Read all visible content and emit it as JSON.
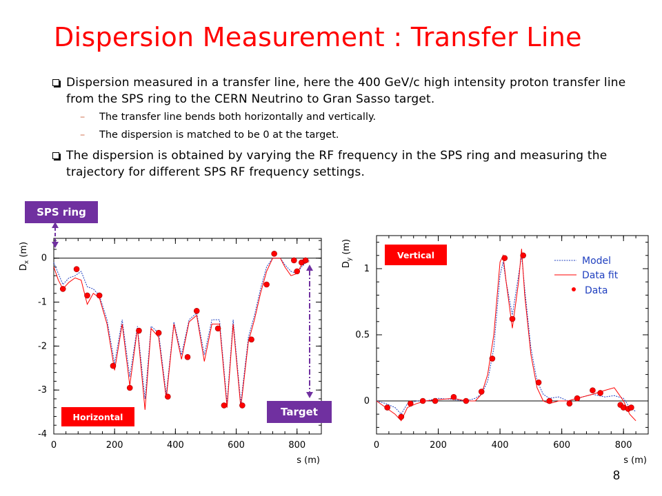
{
  "title": "Dispersion Measurement : Transfer Line",
  "bullets": [
    "Dispersion measured in a transfer line, here the 400 GeV/c high intensity proton transfer line from the SPS ring to the CERN Neutrino to Gran Sasso target.",
    "The dispersion is obtained by varying the RF frequency in the SPS ring and measuring the trajectory for different SPS RF frequency settings."
  ],
  "sub_bullets": [
    "The transfer line bends both horizontally and vertically.",
    "The dispersion is matched to be 0 at the target."
  ],
  "annotations": {
    "sps_ring": "SPS ring",
    "target": "Target",
    "horizontal": "Horizontal",
    "vertical": "Vertical"
  },
  "page_number": "8",
  "legend": {
    "model": "Model",
    "fit": "Data fit",
    "data": "Data"
  },
  "colors": {
    "title": "#ff0000",
    "model": "#1f3fbf",
    "fit": "#ff0000",
    "data": "#ff0000",
    "tag_purple": "#7030a0",
    "tag_red": "#ff0000"
  },
  "chart_data": [
    {
      "type": "line",
      "panel": "Horizontal",
      "xlabel": "s (m)",
      "ylabel_main": "D",
      "ylabel_sub": "x",
      "ylabel_unit": " (m)",
      "xlim": [
        0,
        880
      ],
      "ylim": [
        -4,
        0.45
      ],
      "xticks": [
        0,
        200,
        400,
        600,
        800
      ],
      "xtick_labels": [
        "0",
        "200",
        "400",
        "600",
        "800"
      ],
      "yticks": [
        0,
        -1,
        -2,
        -3,
        -4
      ],
      "ytick_labels": [
        "0",
        "-1",
        "-2",
        "-3",
        "-4"
      ],
      "series": [
        {
          "role": "model",
          "x": [
            0,
            15,
            30,
            50,
            70,
            90,
            110,
            130,
            150,
            175,
            200,
            225,
            250,
            275,
            300,
            320,
            345,
            370,
            395,
            420,
            445,
            470,
            495,
            520,
            545,
            570,
            590,
            615,
            640,
            660,
            680,
            700,
            720,
            745,
            760,
            780,
            800,
            815,
            830,
            840
          ],
          "y": [
            -0.1,
            -0.35,
            -0.6,
            -0.45,
            -0.4,
            -0.3,
            -0.65,
            -0.7,
            -0.85,
            -1.4,
            -2.4,
            -1.4,
            -2.7,
            -1.55,
            -3.2,
            -1.55,
            -1.7,
            -3.1,
            -1.45,
            -2.2,
            -1.4,
            -1.25,
            -2.2,
            -1.4,
            -1.4,
            -3.3,
            -1.4,
            -3.3,
            -1.8,
            -1.3,
            -0.7,
            -0.2,
            0.0,
            0.0,
            -0.15,
            -0.3,
            -0.35,
            -0.2,
            -0.1,
            -0.05
          ]
        },
        {
          "role": "fit",
          "x": [
            0,
            15,
            30,
            50,
            70,
            90,
            110,
            130,
            150,
            175,
            200,
            225,
            250,
            275,
            300,
            320,
            345,
            370,
            395,
            420,
            445,
            470,
            495,
            520,
            545,
            570,
            590,
            615,
            640,
            660,
            680,
            700,
            720,
            745,
            760,
            780,
            800,
            815,
            830,
            840
          ],
          "y": [
            -0.2,
            -0.5,
            -0.7,
            -0.55,
            -0.45,
            -0.5,
            -1.05,
            -0.8,
            -0.9,
            -1.5,
            -2.55,
            -1.5,
            -2.9,
            -1.6,
            -3.45,
            -1.6,
            -1.8,
            -3.2,
            -1.5,
            -2.3,
            -1.45,
            -1.3,
            -2.35,
            -1.5,
            -1.5,
            -3.4,
            -1.5,
            -3.4,
            -1.9,
            -1.4,
            -0.8,
            -0.3,
            0.0,
            0.0,
            -0.2,
            -0.4,
            -0.35,
            -0.15,
            -0.1,
            -0.08
          ]
        },
        {
          "role": "data",
          "x": [
            30,
            75,
            110,
            150,
            195,
            250,
            280,
            345,
            375,
            440,
            470,
            540,
            560,
            620,
            650,
            700,
            725,
            790,
            800,
            815,
            828
          ],
          "y": [
            -0.7,
            -0.25,
            -0.85,
            -0.85,
            -2.45,
            -2.95,
            -1.65,
            -1.7,
            -3.15,
            -2.25,
            -1.2,
            -1.6,
            -3.35,
            -3.35,
            -1.85,
            -0.6,
            0.1,
            -0.05,
            -0.3,
            -0.1,
            -0.05
          ]
        }
      ]
    },
    {
      "type": "line",
      "panel": "Vertical",
      "xlabel": "s (m)",
      "ylabel_main": "D",
      "ylabel_sub": "y",
      "ylabel_unit": " (m)",
      "xlim": [
        0,
        880
      ],
      "ylim": [
        -0.25,
        1.25
      ],
      "xticks": [
        0,
        200,
        400,
        600,
        800
      ],
      "xtick_labels": [
        "0",
        "200",
        "400",
        "600",
        "800"
      ],
      "yticks": [
        0,
        0.5,
        1
      ],
      "ytick_labels": [
        "0",
        "0.5",
        "1"
      ],
      "series": [
        {
          "role": "model",
          "x": [
            0,
            30,
            60,
            80,
            100,
            130,
            160,
            200,
            250,
            290,
            320,
            340,
            360,
            380,
            400,
            410,
            420,
            440,
            460,
            470,
            480,
            500,
            520,
            540,
            560,
            590,
            620,
            650,
            700,
            740,
            770,
            800,
            820,
            840
          ],
          "y": [
            0,
            -0.02,
            -0.05,
            -0.1,
            -0.02,
            0,
            0,
            0.02,
            0.01,
            0.0,
            0.02,
            0.05,
            0.15,
            0.4,
            0.95,
            1.05,
            0.9,
            0.65,
            0.95,
            1.1,
            0.85,
            0.4,
            0.15,
            0.05,
            0.02,
            0.03,
            0.0,
            0.02,
            0.05,
            0.03,
            0.04,
            0.02,
            -0.05,
            -0.08
          ]
        },
        {
          "role": "fit",
          "x": [
            0,
            30,
            60,
            80,
            100,
            130,
            160,
            200,
            250,
            290,
            320,
            340,
            360,
            380,
            400,
            410,
            420,
            440,
            460,
            470,
            480,
            500,
            520,
            540,
            560,
            590,
            620,
            650,
            700,
            740,
            770,
            800,
            820,
            840
          ],
          "y": [
            0,
            -0.05,
            -0.1,
            -0.15,
            -0.05,
            -0.02,
            0,
            0.01,
            0.02,
            0.0,
            0.0,
            0.05,
            0.2,
            0.5,
            1.05,
            1.1,
            0.9,
            0.55,
            0.9,
            1.15,
            0.8,
            0.35,
            0.1,
            0.0,
            -0.02,
            0.0,
            0.0,
            0.02,
            0.05,
            0.08,
            0.1,
            0.0,
            -0.1,
            -0.15
          ]
        },
        {
          "role": "data",
          "x": [
            35,
            80,
            110,
            150,
            190,
            250,
            290,
            340,
            375,
            415,
            440,
            475,
            525,
            560,
            625,
            650,
            700,
            725,
            790,
            800,
            815,
            825
          ],
          "y": [
            -0.05,
            -0.12,
            -0.02,
            0.0,
            0.0,
            0.03,
            0.0,
            0.07,
            0.32,
            1.08,
            0.62,
            1.1,
            0.14,
            0.0,
            -0.02,
            0.02,
            0.08,
            0.06,
            -0.03,
            -0.05,
            -0.06,
            -0.05
          ]
        }
      ]
    }
  ]
}
